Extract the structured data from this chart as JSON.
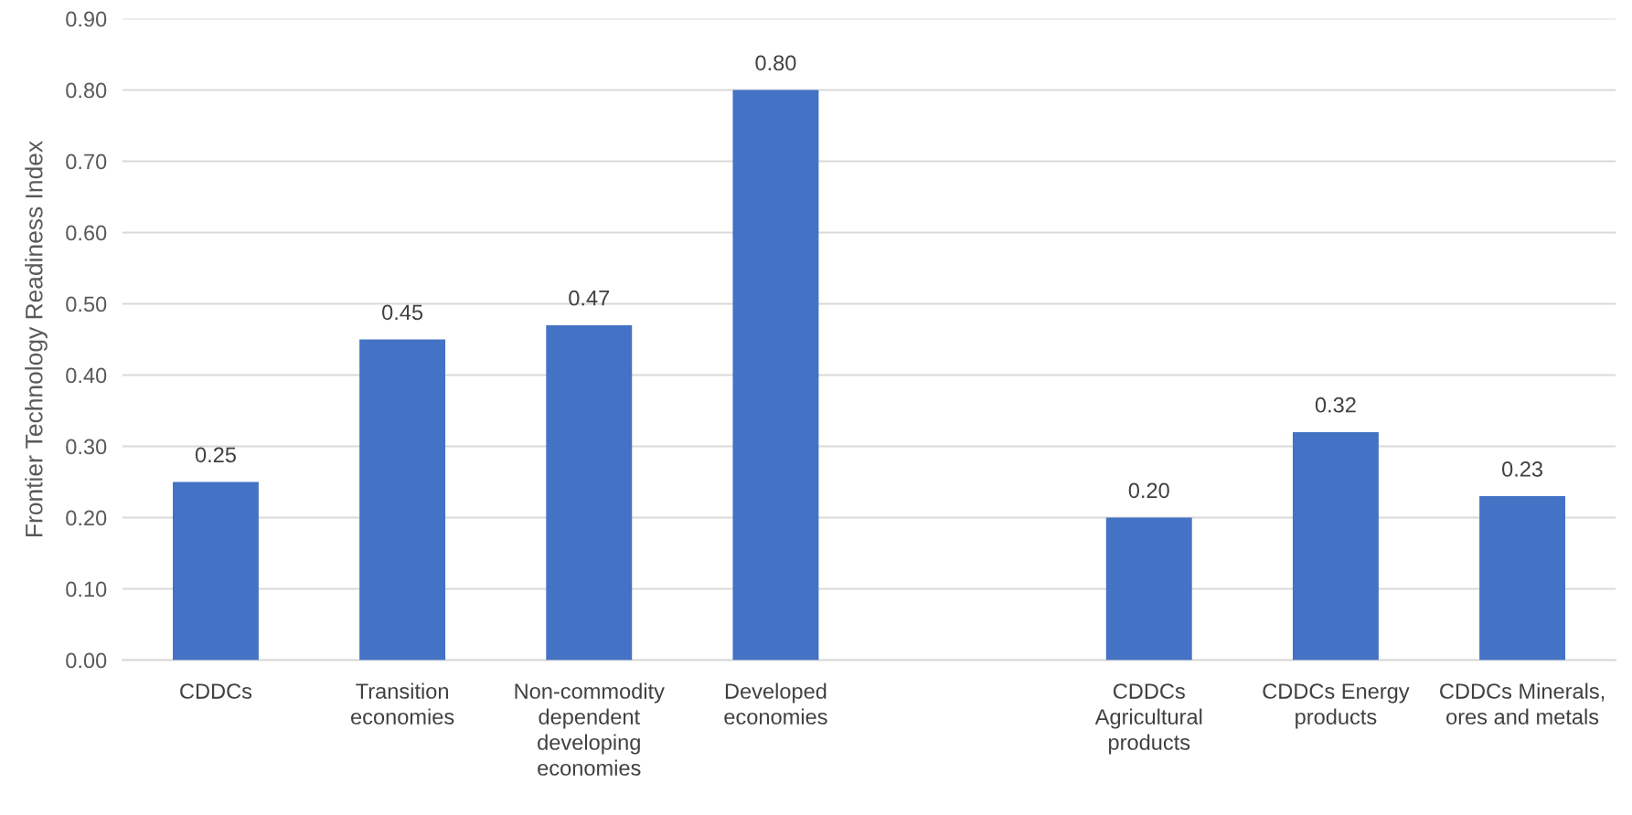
{
  "chart_data": {
    "type": "bar",
    "ylabel": "Frontier Technology Readiness Index",
    "categories": [
      "CDDCs",
      "Transition economies",
      "Non-commodity dependent developing economies",
      "Developed economies",
      null,
      "CDDCs Agricultural products",
      "CDDCs Energy products",
      "CDDCs Minerals, ores and metals"
    ],
    "values": [
      0.25,
      0.45,
      0.47,
      0.8,
      null,
      0.2,
      0.32,
      0.23
    ],
    "value_labels": [
      "0.25",
      "0.45",
      "0.47",
      "0.80",
      null,
      "0.20",
      "0.32",
      "0.23"
    ],
    "color": "#4472c4",
    "ylim": [
      0,
      0.9
    ],
    "yticks": [
      {
        "value": 0,
        "label": "0.00"
      },
      {
        "value": 0.1,
        "label": "0.10"
      },
      {
        "value": 0.2,
        "label": "0.20"
      },
      {
        "value": 0.3,
        "label": "0.30"
      },
      {
        "value": 0.4,
        "label": "0.40"
      },
      {
        "value": 0.5,
        "label": "0.50"
      },
      {
        "value": 0.6,
        "label": "0.60"
      },
      {
        "value": 0.7,
        "label": "0.70"
      },
      {
        "value": 0.8,
        "label": "0.80"
      },
      {
        "value": 0.9,
        "label": "0.90"
      }
    ],
    "grid": "y"
  }
}
